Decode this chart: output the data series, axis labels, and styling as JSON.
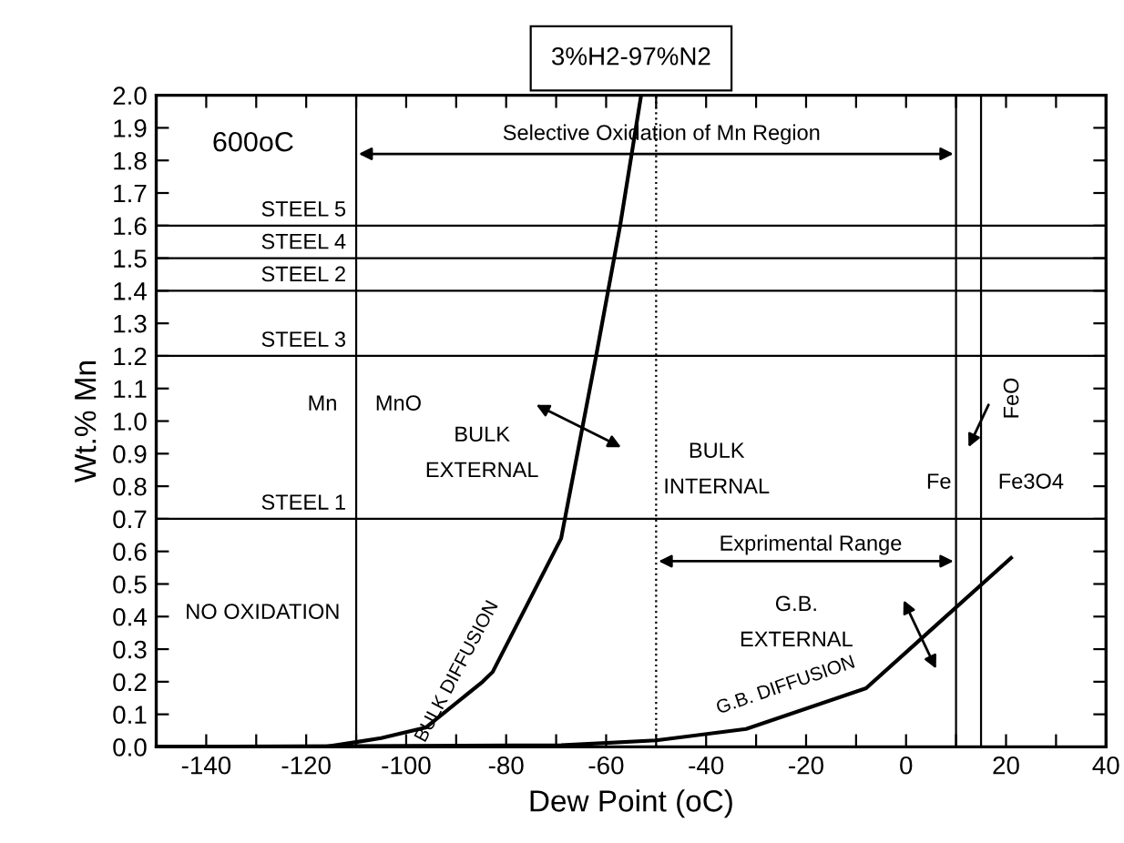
{
  "chart_data": {
    "type": "line",
    "title": "3%H2-97%N2",
    "xlabel": "Dew Point (oC)",
    "ylabel": "Wt.% Mn",
    "xlim": [
      -150,
      40
    ],
    "ylim": [
      0,
      2.0
    ],
    "xticks": [
      -140,
      {
        "value": -130,
        "label": null
      },
      -120,
      {
        "value": -110,
        "label": null
      },
      -100,
      {
        "value": -90,
        "label": null
      },
      -80,
      {
        "value": -70,
        "label": null
      },
      -60,
      {
        "value": -50,
        "label": null
      },
      -40,
      {
        "value": -30,
        "label": null
      },
      -20,
      {
        "value": -10,
        "label": null
      },
      0,
      {
        "value": 10,
        "label": null
      },
      20,
      {
        "value": 30,
        "label": null
      },
      40
    ],
    "yticks": [
      {
        "value": 0,
        "label": "0.0"
      },
      0.1,
      0.2,
      0.3,
      0.4,
      0.5,
      0.6,
      0.7,
      0.8,
      0.9,
      {
        "value": 1,
        "label": "1.0"
      },
      1.1,
      1.2,
      1.3,
      1.4,
      1.5,
      1.6,
      1.7,
      1.8,
      1.9,
      {
        "value": 2,
        "label": "2.0"
      }
    ],
    "grid": false,
    "legend": false,
    "marker": "none",
    "line_style": "solid",
    "series": [
      {
        "name": "BULK DIFFUSION",
        "color": "#000000",
        "x": [
          -150,
          -116.5,
          -110,
          -105,
          -96,
          -84.7,
          -82.7,
          -69,
          -62,
          -57.2,
          -53
        ],
        "values": [
          0.0,
          0.0,
          0.015,
          0.027,
          0.06,
          0.2,
          0.23,
          0.64,
          1.2,
          1.6,
          2.0
        ]
      },
      {
        "name": "G.B. DIFFUSION",
        "color": "#000000",
        "x": [
          -150,
          -69,
          -50,
          -32,
          -8,
          21
        ],
        "values": [
          0.0,
          0.005,
          0.02,
          0.055,
          0.18,
          0.58
        ]
      }
    ],
    "ref_lines": [
      {
        "axis": "y",
        "value": 1.6,
        "label": "STEEL 5",
        "color": "#000000",
        "line_style": "solid"
      },
      {
        "axis": "y",
        "value": 1.5,
        "label": "STEEL 4",
        "color": "#000000",
        "line_style": "solid"
      },
      {
        "axis": "y",
        "value": 1.4,
        "label": "STEEL 2",
        "color": "#000000",
        "line_style": "solid"
      },
      {
        "axis": "y",
        "value": 1.2,
        "label": "STEEL 3",
        "color": "#000000",
        "line_style": "solid"
      },
      {
        "axis": "y",
        "value": 0.7,
        "label": "STEEL 1",
        "color": "#000000",
        "line_style": "solid"
      },
      {
        "axis": "x",
        "value": -110,
        "color": "#000000",
        "line_style": "solid"
      },
      {
        "axis": "x",
        "value": -50,
        "color": "#000000",
        "line_style": "dotted"
      },
      {
        "axis": "x",
        "value": 10,
        "color": "#000000",
        "line_style": "solid"
      },
      {
        "axis": "x",
        "value": 15,
        "color": "#000000",
        "line_style": "solid"
      }
    ],
    "annotations": [
      "600oC",
      "Selective Oxidation of Mn Region",
      "Mn",
      "MnO",
      "BULK\nEXTERNAL",
      "BULK\nINTERNAL",
      "Fe",
      "Fe3O4",
      "FeO",
      "Exprimental Range",
      "NO OXIDATION",
      "G.B.\nEXTERNAL"
    ]
  }
}
